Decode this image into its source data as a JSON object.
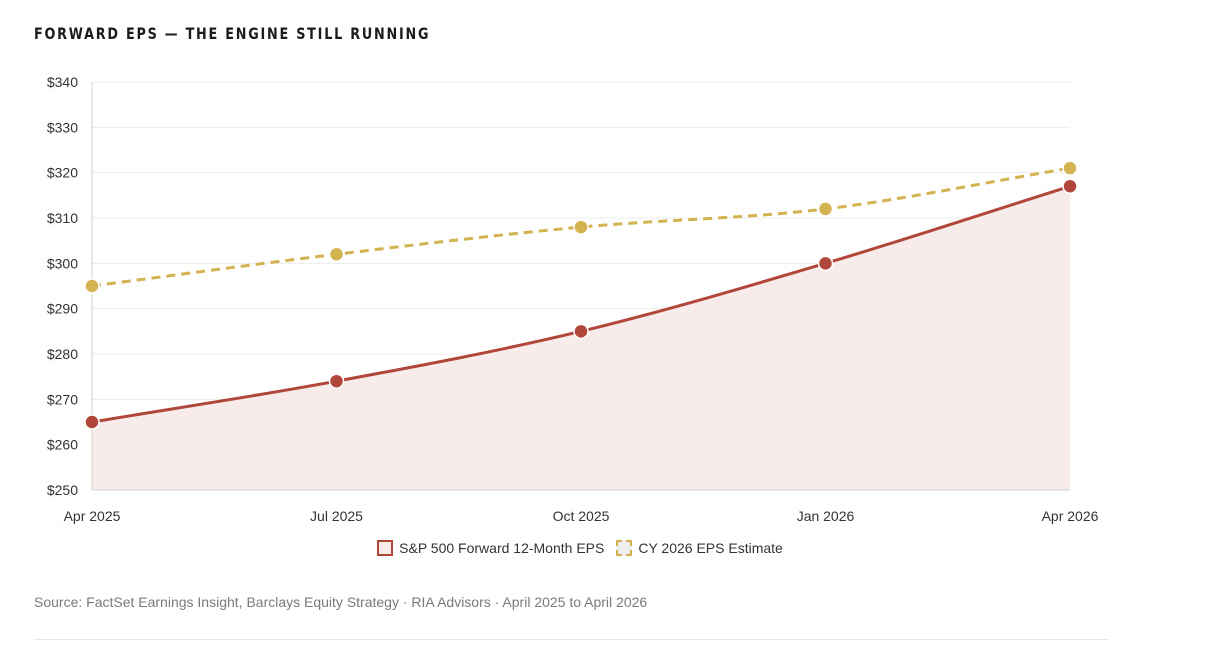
{
  "title": "FORWARD EPS — THE ENGINE STILL RUNNING",
  "source_note": "Source: FactSet Earnings Insight, Barclays Equity Strategy · RIA Advisors · April 2025 to April 2026",
  "colors": {
    "primary": "#b0473a",
    "primary_fill": "#f8ecea",
    "secondary": "#d2b34f",
    "grid": "#ececec",
    "axis": "#d0d0d0"
  },
  "chart_data": {
    "type": "line",
    "title": "FORWARD EPS — THE ENGINE STILL RUNNING",
    "xlabel": "",
    "ylabel": "",
    "categories": [
      "Apr 2025",
      "Jul 2025",
      "Oct 2025",
      "Jan 2026",
      "Apr 2026"
    ],
    "ylim": [
      250,
      340
    ],
    "yticks": [
      250,
      260,
      270,
      280,
      290,
      300,
      310,
      320,
      330,
      340
    ],
    "ytick_labels": [
      "$250",
      "$260",
      "$270",
      "$280",
      "$290",
      "$300",
      "$310",
      "$320",
      "$330",
      "$340"
    ],
    "grid": true,
    "legend_position": "bottom-center",
    "series": [
      {
        "name": "S&P 500 Forward 12-Month EPS",
        "values": [
          265,
          274,
          285,
          300,
          317
        ],
        "style": "solid",
        "filled": true,
        "color": "#b0473a"
      },
      {
        "name": "CY 2026 EPS Estimate",
        "values": [
          295,
          302,
          308,
          312,
          321
        ],
        "style": "dashed",
        "filled": false,
        "color": "#d2b34f"
      }
    ]
  }
}
